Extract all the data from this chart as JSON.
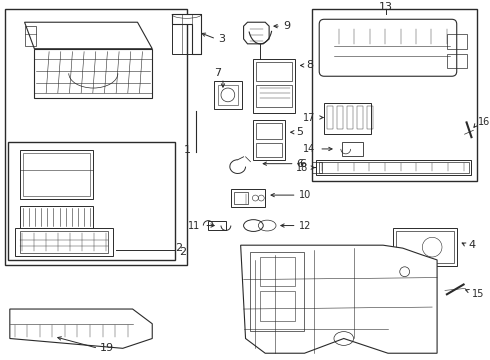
{
  "bg_color": "#ffffff",
  "lc": "#2a2a2a",
  "figw": 4.9,
  "figh": 3.6,
  "dpi": 100
}
